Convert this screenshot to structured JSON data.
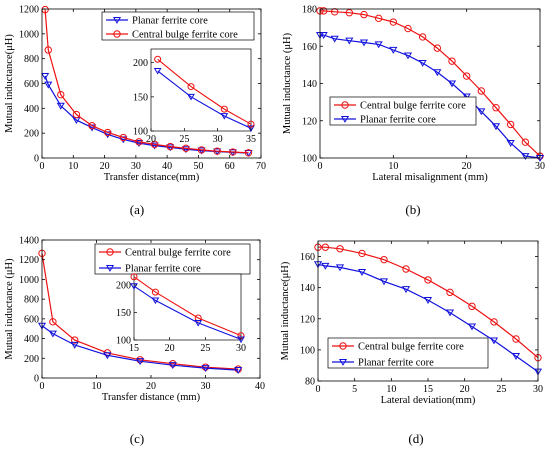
{
  "colors": {
    "red": "#ee1111",
    "blue": "#1111dd"
  },
  "chart_data": [
    {
      "id": "a",
      "type": "line",
      "panel_label": "(a)",
      "xlabel": "Transfer distance(mm)",
      "ylabel": "Mutual inductance(μH)",
      "xlim": [
        0,
        70
      ],
      "ylim": [
        0,
        1200
      ],
      "xticks": [
        "0",
        "10",
        "20",
        "30",
        "40",
        "50",
        "60",
        "70"
      ],
      "yticks": [
        "0",
        "200",
        "400",
        "600",
        "800",
        "1000",
        "1200"
      ],
      "legend_position": "top-right",
      "series": [
        {
          "name": "Planar ferrite core",
          "color": "blue",
          "marker": "triangle",
          "x": [
            1,
            2,
            6,
            11,
            16,
            21,
            26,
            31,
            36,
            41,
            46,
            51,
            56,
            61,
            66
          ],
          "y": [
            660,
            590,
            420,
            305,
            245,
            190,
            150,
            120,
            100,
            85,
            70,
            60,
            52,
            45,
            40
          ]
        },
        {
          "name": "Central bulge ferrite core",
          "color": "red",
          "marker": "circle",
          "x": [
            1,
            2,
            6,
            11,
            16,
            21,
            26,
            31,
            36,
            41,
            46,
            51,
            56,
            61,
            66
          ],
          "y": [
            1195,
            870,
            510,
            350,
            260,
            205,
            165,
            130,
            110,
            92,
            78,
            65,
            55,
            48,
            42
          ]
        }
      ],
      "inset": {
        "xlim": [
          20,
          35
        ],
        "ylim": [
          100,
          220
        ],
        "xticks": [
          "20",
          "25",
          "30",
          "35"
        ],
        "yticks": [
          "100",
          "150",
          "200"
        ],
        "series": [
          {
            "color": "blue",
            "marker": "triangle",
            "x": [
              21,
              26,
              31,
              35
            ],
            "y": [
              188,
              150,
              122,
              104
            ]
          },
          {
            "color": "red",
            "marker": "circle",
            "x": [
              21,
              26,
              31,
              35
            ],
            "y": [
              205,
              165,
              132,
              110
            ]
          }
        ]
      }
    },
    {
      "id": "b",
      "type": "line",
      "panel_label": "(b)",
      "xlabel": "Lateral misalignment (mm)",
      "ylabel": "Mutual inductance (μH)",
      "xlim": [
        0,
        30
      ],
      "ylim": [
        100,
        180
      ],
      "xticks": [
        "0",
        "10",
        "20",
        "30"
      ],
      "yticks": [
        "100",
        "120",
        "140",
        "160",
        "180"
      ],
      "legend_position": "bottom-left",
      "series": [
        {
          "name": "Central bulge ferrite core",
          "color": "red",
          "marker": "circle",
          "x": [
            0,
            0.5,
            2,
            4,
            6,
            8,
            10,
            12,
            14,
            16,
            18,
            20,
            22,
            24,
            26,
            28,
            30
          ],
          "y": [
            179,
            179,
            178.5,
            178,
            177,
            175,
            173,
            169.5,
            165,
            159,
            152,
            144,
            136,
            127,
            118,
            108.5,
            101
          ]
        },
        {
          "name": "Planar ferrite core",
          "color": "blue",
          "marker": "triangle",
          "x": [
            0,
            0.5,
            2,
            4,
            6,
            8,
            10,
            12,
            14,
            16,
            18,
            20,
            22,
            24,
            26,
            28,
            30
          ],
          "y": [
            166,
            166,
            164,
            163,
            162,
            161,
            158,
            155,
            151,
            146,
            140,
            133,
            125,
            117,
            108,
            101,
            100
          ]
        }
      ]
    },
    {
      "id": "c",
      "type": "line",
      "panel_label": "(c)",
      "xlabel": "Transfer distance (mm)",
      "ylabel": "Mutual inductance (μH)",
      "xlim": [
        0,
        40
      ],
      "ylim": [
        0,
        1400
      ],
      "xticks": [
        "0",
        "10",
        "20",
        "30",
        "40"
      ],
      "yticks": [
        "0",
        "200",
        "400",
        "600",
        "800",
        "1000",
        "1200",
        "1400"
      ],
      "legend_position": "top-right",
      "series": [
        {
          "name": "Central bulge ferrite core",
          "color": "red",
          "marker": "circle",
          "x": [
            0,
            2,
            6,
            12,
            18,
            24,
            30,
            36
          ],
          "y": [
            1265,
            570,
            385,
            255,
            185,
            145,
            110,
            90
          ]
        },
        {
          "name": "Planar ferrite core",
          "color": "blue",
          "marker": "triangle",
          "x": [
            0,
            2,
            6,
            12,
            18,
            24,
            30,
            36
          ],
          "y": [
            530,
            450,
            335,
            230,
            170,
            130,
            100,
            80
          ]
        }
      ],
      "inset": {
        "xlim": [
          15,
          30
        ],
        "ylim": [
          100,
          220
        ],
        "xticks": [
          "15",
          "20",
          "25",
          "30"
        ],
        "yticks": [
          "100",
          "150",
          "200"
        ],
        "series": [
          {
            "color": "red",
            "marker": "circle",
            "x": [
              15,
              18,
              24,
              30
            ],
            "y": [
              215,
              187,
              140,
              108
            ]
          },
          {
            "color": "blue",
            "marker": "triangle",
            "x": [
              15,
              18,
              24,
              30
            ],
            "y": [
              198,
              172,
              131,
              101
            ]
          }
        ]
      }
    },
    {
      "id": "d",
      "type": "line",
      "panel_label": "(d)",
      "xlabel": "Lateral deviation(mm)",
      "ylabel": "Mutual inductance(μH)",
      "xlim": [
        0,
        30
      ],
      "ylim": [
        80,
        170
      ],
      "xticks": [
        "0",
        "5",
        "10",
        "15",
        "20",
        "25",
        "30"
      ],
      "yticks": [
        "80",
        "100",
        "120",
        "140",
        "160"
      ],
      "legend_position": "bottom-left",
      "series": [
        {
          "name": "Central bulge ferrite core",
          "color": "red",
          "marker": "circle",
          "x": [
            0,
            1,
            3,
            6,
            9,
            12,
            15,
            18,
            21,
            24,
            27,
            30
          ],
          "y": [
            166,
            166,
            165,
            162,
            158,
            152,
            145,
            137,
            128,
            118,
            107,
            95
          ]
        },
        {
          "name": "Planar ferrite core",
          "color": "blue",
          "marker": "triangle",
          "x": [
            0,
            1,
            3,
            6,
            9,
            12,
            15,
            18,
            21,
            24,
            27,
            30
          ],
          "y": [
            155,
            154,
            153,
            150,
            144,
            139,
            132,
            124,
            115,
            106,
            96,
            86
          ]
        }
      ]
    }
  ]
}
